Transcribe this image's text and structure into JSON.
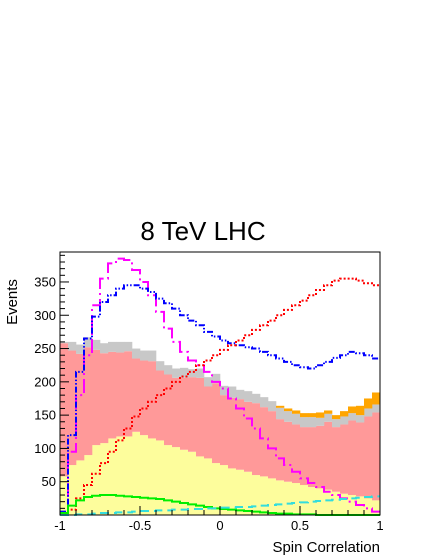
{
  "chart_data": {
    "type": "histogram",
    "title": "8 TeV LHC",
    "xlabel": "Spin Correlation",
    "ylabel": "Events",
    "xlim": [
      -1,
      1
    ],
    "ylim": [
      0,
      395
    ],
    "x_ticks": [
      -1,
      -0.5,
      0,
      0.5,
      1
    ],
    "x_tick_labels": [
      "-1",
      "-0.5",
      "0",
      "0.5",
      "1"
    ],
    "y_ticks": [
      50,
      100,
      150,
      200,
      250,
      300,
      350
    ],
    "y_tick_labels": [
      "50",
      "100",
      "150",
      "200",
      "250",
      "300",
      "350"
    ],
    "bins": 40,
    "stacked_series": [
      {
        "color": "#fdfd9c",
        "values": [
          58,
          75,
          82,
          90,
          105,
          108,
          115,
          118,
          118,
          125,
          120,
          115,
          112,
          105,
          102,
          98,
          95,
          88,
          85,
          78,
          75,
          70,
          68,
          65,
          60,
          58,
          55,
          52,
          50,
          48,
          45,
          42,
          40,
          38,
          35,
          32,
          30,
          28,
          25,
          22
        ]
      },
      {
        "color": "#ff9999",
        "values": [
          200,
          172,
          160,
          162,
          143,
          135,
          130,
          126,
          128,
          110,
          112,
          116,
          105,
          106,
          104,
          108,
          112,
          118,
          108,
          120,
          105,
          106,
          106,
          105,
          108,
          104,
          101,
          92,
          90,
          88,
          87,
          90,
          94,
          102,
          97,
          104,
          112,
          111,
          123,
          132
        ]
      },
      {
        "color": "#c8c8c8",
        "values": [
          2,
          13,
          14,
          15,
          15,
          15,
          15,
          16,
          14,
          15,
          15,
          16,
          14,
          14,
          14,
          15,
          12,
          14,
          14,
          14,
          14,
          17,
          14,
          16,
          14,
          15,
          15,
          17,
          16,
          16,
          15,
          15,
          12,
          12,
          12,
          12,
          11,
          11,
          12,
          12
        ]
      },
      {
        "color": "#ffa500",
        "values": [
          0,
          0,
          0,
          0,
          0,
          0,
          0,
          0,
          0,
          0,
          0,
          0,
          0,
          0,
          0,
          0,
          0,
          0,
          0,
          0,
          0,
          0,
          0,
          0,
          0,
          0,
          0,
          3,
          4,
          5,
          6,
          6,
          8,
          5,
          6,
          8,
          10,
          14,
          15,
          18
        ]
      }
    ],
    "line_series": [
      {
        "color": "#ff00ff",
        "style": "dash-dot",
        "values": [
          3,
          95,
          180,
          240,
          315,
          355,
          378,
          385,
          383,
          368,
          350,
          330,
          305,
          280,
          260,
          245,
          232,
          225,
          215,
          200,
          190,
          175,
          160,
          145,
          130,
          115,
          100,
          85,
          75,
          65,
          55,
          48,
          42,
          35,
          30,
          25,
          20,
          15,
          10,
          5
        ]
      },
      {
        "color": "#0000ff",
        "style": "dash-dot-dot",
        "values": [
          5,
          120,
          215,
          265,
          298,
          320,
          330,
          340,
          345,
          345,
          340,
          335,
          325,
          318,
          310,
          300,
          292,
          285,
          275,
          268,
          262,
          258,
          255,
          252,
          250,
          245,
          240,
          235,
          230,
          225,
          222,
          220,
          225,
          230,
          236,
          240,
          245,
          243,
          240,
          235
        ]
      },
      {
        "color": "#ff0000",
        "style": "dotted",
        "values": [
          0,
          8,
          25,
          45,
          62,
          78,
          95,
          112,
          130,
          148,
          160,
          170,
          180,
          190,
          200,
          208,
          215,
          225,
          232,
          240,
          248,
          255,
          262,
          270,
          278,
          285,
          292,
          300,
          308,
          315,
          322,
          330,
          338,
          345,
          352,
          355,
          355,
          352,
          348,
          345
        ]
      },
      {
        "color": "#00ee00",
        "style": "solid",
        "values": [
          3,
          14,
          22,
          27,
          29,
          30,
          30,
          29,
          28,
          27,
          26,
          25,
          24,
          22,
          20,
          18,
          16,
          14,
          12,
          10,
          9,
          8,
          7,
          6,
          5,
          4,
          3,
          2,
          2,
          1,
          1,
          1,
          0,
          0,
          0,
          0,
          0,
          0,
          0,
          0
        ]
      },
      {
        "color": "#33dddd",
        "style": "dashed",
        "values": [
          0,
          0,
          1,
          1,
          2,
          3,
          3,
          4,
          4,
          5,
          6,
          6,
          7,
          7,
          8,
          8,
          9,
          9,
          10,
          10,
          11,
          11,
          12,
          12,
          13,
          14,
          15,
          16,
          17,
          18,
          19,
          20,
          21,
          22,
          23,
          24,
          25,
          26,
          27,
          28
        ]
      }
    ]
  }
}
